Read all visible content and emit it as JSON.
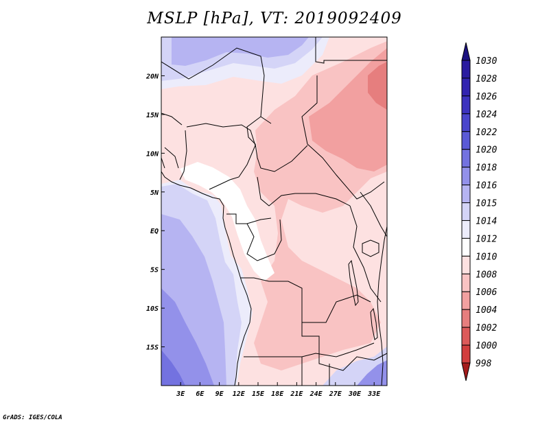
{
  "title": "MSLP [hPa], VT: 2019092409",
  "credit": "GrADS: IGES/COLA",
  "map": {
    "lon_range": [
      0,
      35
    ],
    "lat_range": [
      -20,
      25
    ],
    "lat_ticks": [
      {
        "value": 20,
        "label": "20N"
      },
      {
        "value": 15,
        "label": "15N"
      },
      {
        "value": 10,
        "label": "10N"
      },
      {
        "value": 5,
        "label": "5N"
      },
      {
        "value": 0,
        "label": "EQ"
      },
      {
        "value": -5,
        "label": "5S"
      },
      {
        "value": -10,
        "label": "10S"
      },
      {
        "value": -15,
        "label": "15S"
      }
    ],
    "lon_ticks": [
      {
        "value": 3,
        "label": "3E"
      },
      {
        "value": 6,
        "label": "6E"
      },
      {
        "value": 9,
        "label": "9E"
      },
      {
        "value": 12,
        "label": "12E"
      },
      {
        "value": 15,
        "label": "15E"
      },
      {
        "value": 18,
        "label": "18E"
      },
      {
        "value": 21,
        "label": "21E"
      },
      {
        "value": 24,
        "label": "24E"
      },
      {
        "value": 27,
        "label": "27E"
      },
      {
        "value": 30,
        "label": "30E"
      },
      {
        "value": 33,
        "label": "33E"
      }
    ]
  },
  "colorbar": {
    "levels": [
      {
        "label": "1030",
        "color": "#2a1ba0"
      },
      {
        "label": "1028",
        "color": "#3224b0"
      },
      {
        "label": "1026",
        "color": "#3d33bf"
      },
      {
        "label": "1024",
        "color": "#4a45cc"
      },
      {
        "label": "1022",
        "color": "#5b5ad6"
      },
      {
        "label": "1020",
        "color": "#7372e0"
      },
      {
        "label": "1018",
        "color": "#9391ea"
      },
      {
        "label": "1016",
        "color": "#b6b4f2"
      },
      {
        "label": "1015",
        "color": "#d4d4f7"
      },
      {
        "label": "1014",
        "color": "#ececfb"
      },
      {
        "label": "1012",
        "color": "#ffffff"
      },
      {
        "label": "1010",
        "color": "#fde1e1"
      },
      {
        "label": "1008",
        "color": "#f9c3c3"
      },
      {
        "label": "1006",
        "color": "#f2a0a0"
      },
      {
        "label": "1004",
        "color": "#e67e7e"
      },
      {
        "label": "1002",
        "color": "#dc5a5a"
      },
      {
        "label": "1000",
        "color": "#d23e3e"
      },
      {
        "label": "998",
        "color": "#c02828"
      }
    ],
    "top_color": "#1c1280",
    "bottom_color": "#a51c1c"
  }
}
